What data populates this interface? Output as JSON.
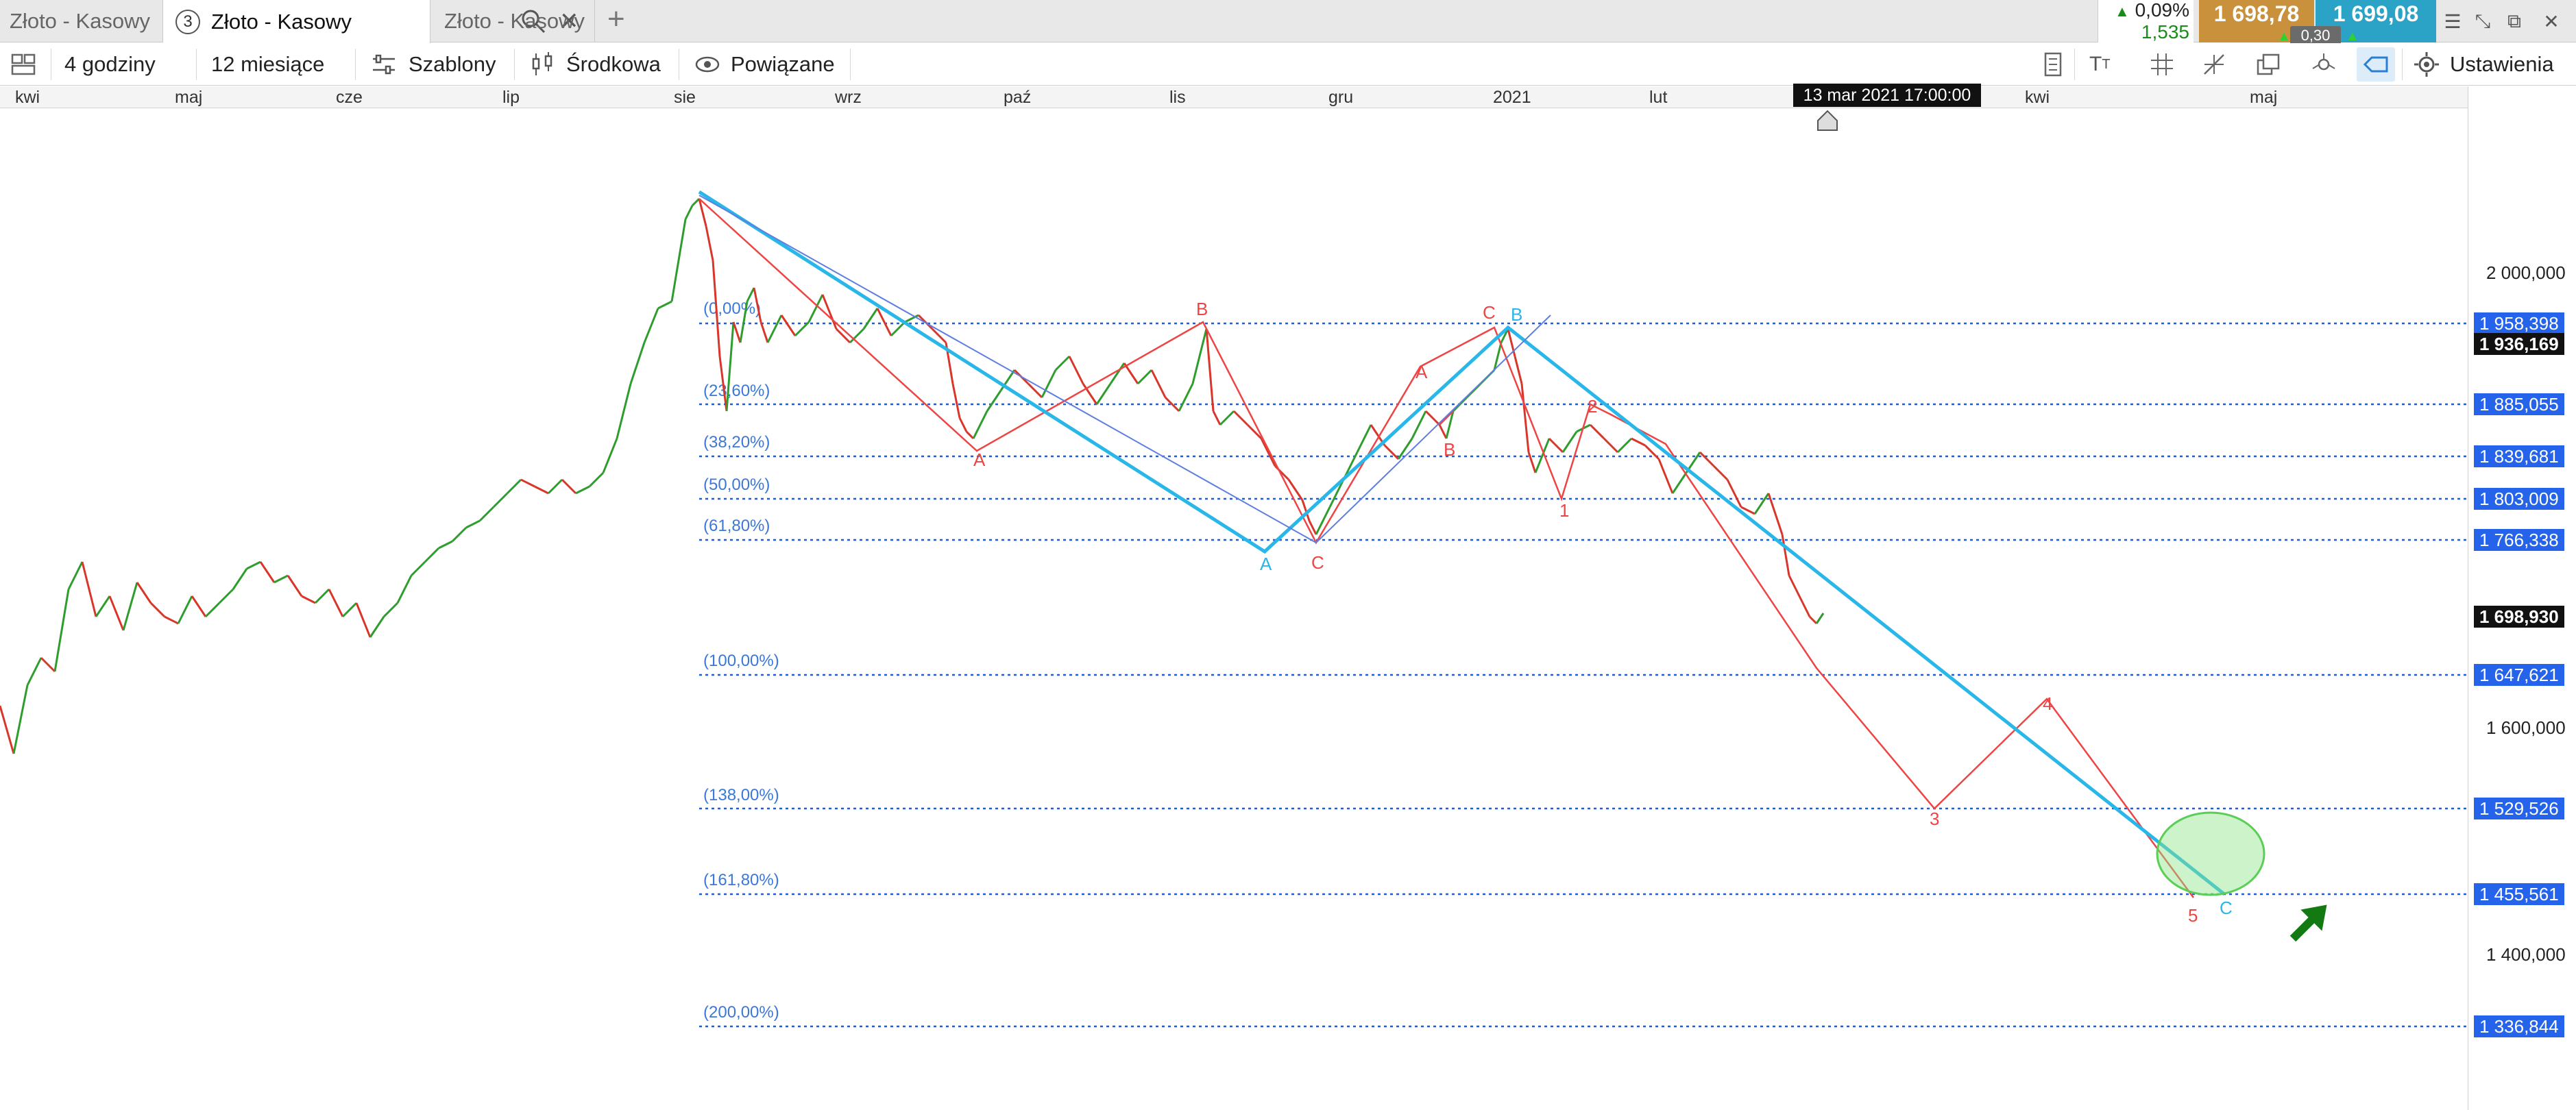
{
  "tabs": [
    {
      "label": "Złoto - Kasowy"
    },
    {
      "label": "Złoto - Kasowy",
      "number": "3"
    },
    {
      "label": "Złoto - Kasowy"
    }
  ],
  "quote": {
    "change_pct": "0,09%",
    "change_abs": "1,535",
    "bid": "1 698,78",
    "ask": "1 699,08",
    "spread": "0,30",
    "bid_color": "#c9913b",
    "ask_color": "#2aa3c7"
  },
  "toolbar": {
    "interval": "4 godziny",
    "range": "12 miesiące",
    "templates": "Szablony",
    "price_type": "Środkowa",
    "related": "Powiązane",
    "settings": "Ustawienia"
  },
  "time_axis": {
    "months": [
      "kwi",
      "maj",
      "cze",
      "lip",
      "sie",
      "wrz",
      "paź",
      "lis",
      "gru",
      "2021",
      "lut",
      "kwi",
      "maj"
    ],
    "cursor_time": "13 mar 2021 17:00:00"
  },
  "price_axis": {
    "ticks": [
      "2 000,000",
      "1 600,000",
      "1 400,000"
    ],
    "fib_prices": [
      "1 958,398",
      "1 885,055",
      "1 839,681",
      "1 803,009",
      "1 766,338",
      "1 647,621",
      "1 529,526",
      "1 455,561",
      "1 336,844"
    ],
    "cursor_price": "1 936,169",
    "last_price": "1 698,930"
  },
  "fib_levels": [
    "(0,00%)",
    "(23,60%)",
    "(38,20%)",
    "(50,00%)",
    "(61,80%)",
    "(100,00%)",
    "(138,00%)",
    "(161,80%)",
    "(200,00%)"
  ],
  "wave_labels": {
    "red_a1": "A",
    "red_b1": "B",
    "red_c1": "C",
    "red_a2": "A",
    "red_b2": "B",
    "red_c2": "C",
    "red_1": "1",
    "red_2": "2",
    "red_3": "3",
    "red_4": "4",
    "red_5": "5",
    "cyan_a": "A",
    "cyan_b": "B",
    "cyan_c": "C"
  },
  "colors": {
    "fib_line": "#1f5fd6",
    "fib_label": "#3b78d8",
    "wave_red": "#ef4444",
    "channel_cyan": "#29b6e8",
    "target_fill": "#8ee58a",
    "arrow_green": "#137a13"
  },
  "icons": [
    "layout-icon",
    "clock-icon",
    "sliders-icon",
    "candles-icon",
    "eye-icon",
    "list-icon",
    "text-size-icon",
    "grid-icon",
    "drawing-tools-icon",
    "layers-icon",
    "crosshair-icon",
    "tag-icon",
    "gear-icon"
  ]
}
